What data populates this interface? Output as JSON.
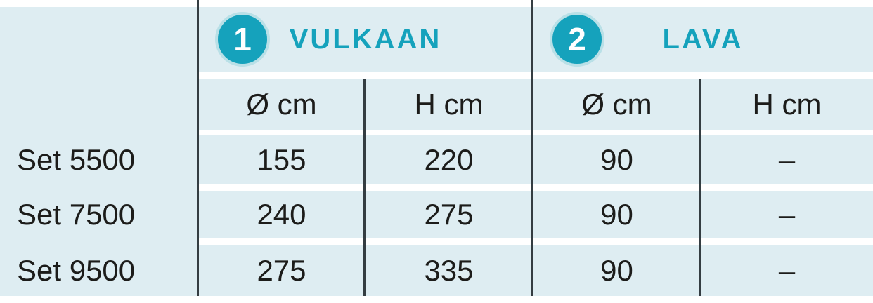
{
  "table": {
    "groups": [
      {
        "badge": "1",
        "name": "VULKAAN"
      },
      {
        "badge": "2",
        "name": "LAVA"
      }
    ],
    "subheaders": [
      "Ø cm",
      "H cm",
      "Ø cm",
      "H cm"
    ],
    "rows": [
      {
        "label": "Set 5500",
        "values": [
          "155",
          "220",
          "90",
          "–"
        ]
      },
      {
        "label": "Set 7500",
        "values": [
          "240",
          "275",
          "90",
          "–"
        ]
      },
      {
        "label": "Set 9500",
        "values": [
          "275",
          "335",
          "90",
          "–"
        ]
      }
    ],
    "colors": {
      "background": "#deedf2",
      "accent_teal": "#15a2bc",
      "badge_ring": "#b9e0e7",
      "divider": "#343d42",
      "text": "#1c1c1a"
    }
  },
  "chart_data": {
    "type": "table",
    "title": "",
    "column_groups": [
      "VULKAAN",
      "LAVA"
    ],
    "columns": [
      "",
      "VULKAAN Ø cm",
      "VULKAAN H cm",
      "LAVA Ø cm",
      "LAVA H cm"
    ],
    "rows": [
      [
        "Set 5500",
        155,
        220,
        90,
        null
      ],
      [
        "Set 7500",
        240,
        275,
        90,
        null
      ],
      [
        "Set 9500",
        275,
        335,
        90,
        null
      ]
    ]
  }
}
